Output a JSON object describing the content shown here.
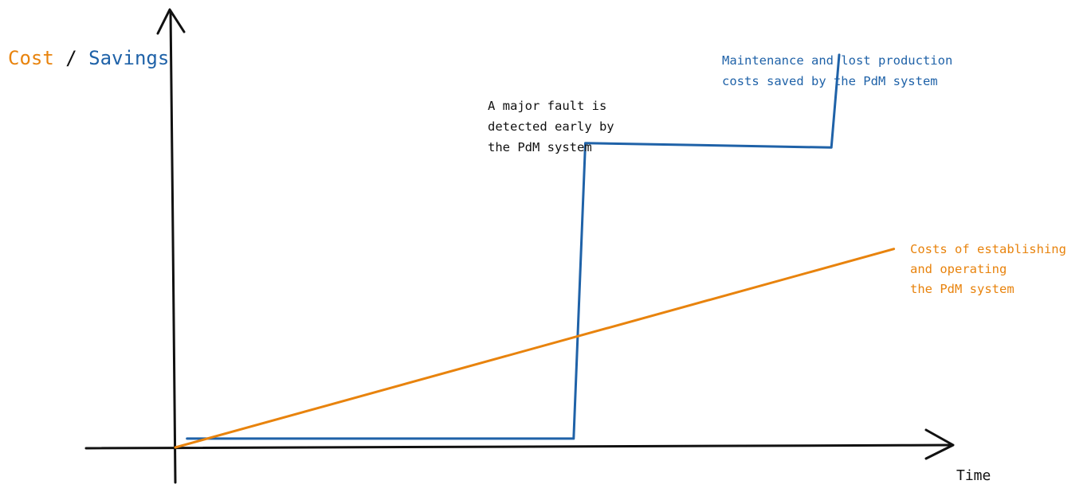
{
  "colors": {
    "cost": "#e8830d",
    "savings": "#1f62a8",
    "axis": "#111111",
    "text": "#111111"
  },
  "chart_data": {
    "type": "line",
    "title": "",
    "ylabel_parts": [
      "Cost",
      " / ",
      "Savings"
    ],
    "xlabel": "Time",
    "xlim": [
      0,
      10
    ],
    "ylim": [
      0,
      10
    ],
    "grid": false,
    "series": [
      {
        "name": "Costs of establishing and operating the PdM system",
        "role": "cost",
        "x": [
          0,
          9.2
        ],
        "y": [
          0,
          4.5
        ]
      },
      {
        "name": "Maintenance and lost production costs saved by the PdM system",
        "role": "savings",
        "x": [
          0.15,
          5.1,
          5.25,
          8.4,
          8.5
        ],
        "y": [
          0.2,
          0.2,
          6.9,
          6.8,
          8.9
        ]
      }
    ],
    "annotations": [
      {
        "id": "fault",
        "lines": [
          "A major fault is",
          "detected early by",
          "the PdM system"
        ],
        "color": "text"
      },
      {
        "id": "savings",
        "lines": [
          "Maintenance and lost production",
          "costs saved by the PdM system"
        ],
        "color": "savings"
      },
      {
        "id": "cost",
        "lines": [
          "Costs of establishing",
          "and operating",
          "the PdM system"
        ],
        "color": "cost"
      }
    ]
  }
}
